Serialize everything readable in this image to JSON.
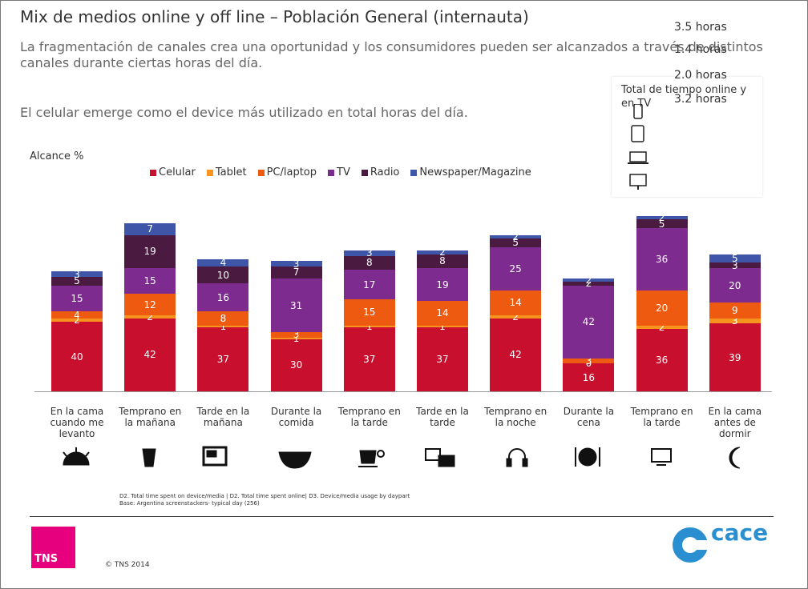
{
  "chart_data": {
    "type": "stacked_bar",
    "title": "Mix de medios online y off line – Población General (internauta)",
    "subtitle": "La fragmentación de canales crea una oportunidad y los consumidores pueden ser alcanzados a través de distintos canales durante ciertas horas del día.",
    "annotation": "El celular emerge como el device más utilizado en total horas del día.",
    "ylabel": "Alcance %",
    "categories": [
      "En la cama cuando me levanto",
      "Temprano en la mañana",
      "Tarde en la mañana",
      "Durante la comida",
      "Temprano en la tarde",
      "Tarde en la tarde",
      "Temprano en la noche",
      "Durante la cena",
      "Temprano en la tarde",
      "En la cama antes de dormir"
    ],
    "series": [
      {
        "name": "Celular",
        "color": "#c8102e",
        "values": [
          40,
          42,
          37,
          30,
          37,
          37,
          42,
          16,
          36,
          39
        ]
      },
      {
        "name": "Tablet",
        "color": "#f7941d",
        "values": [
          2,
          2,
          1,
          1,
          1,
          1,
          2,
          0,
          2,
          3
        ]
      },
      {
        "name": "PC/laptop",
        "color": "#ee5a10",
        "values": [
          4,
          12,
          8,
          3,
          15,
          14,
          14,
          3,
          20,
          9
        ]
      },
      {
        "name": "TV",
        "color": "#7d2b8f",
        "values": [
          15,
          15,
          16,
          31,
          17,
          19,
          25,
          42,
          36,
          20
        ]
      },
      {
        "name": "Radio",
        "color": "#4b1a40",
        "values": [
          5,
          19,
          10,
          7,
          8,
          8,
          5,
          2,
          5,
          3
        ]
      },
      {
        "name": "Newspaper/Magazine",
        "color": "#3f56a8",
        "values": [
          3,
          7,
          4,
          3,
          3,
          2,
          2,
          2,
          2,
          5
        ]
      }
    ],
    "panel": {
      "title": "Total de tiempo online y en TV",
      "items": [
        "3.5 horas",
        "1.4 horas",
        "2.0 horas",
        "3.2 horas"
      ]
    },
    "footnote": [
      "D2. Total time spent on device/media | D2. Total time spent online| D3. Device/media usage by daypart",
      "Base: Argentina screenstackers- typical day (256)"
    ],
    "copyright": "© TNS 2014",
    "logo_left": "TNS",
    "logo_right": "cace"
  }
}
